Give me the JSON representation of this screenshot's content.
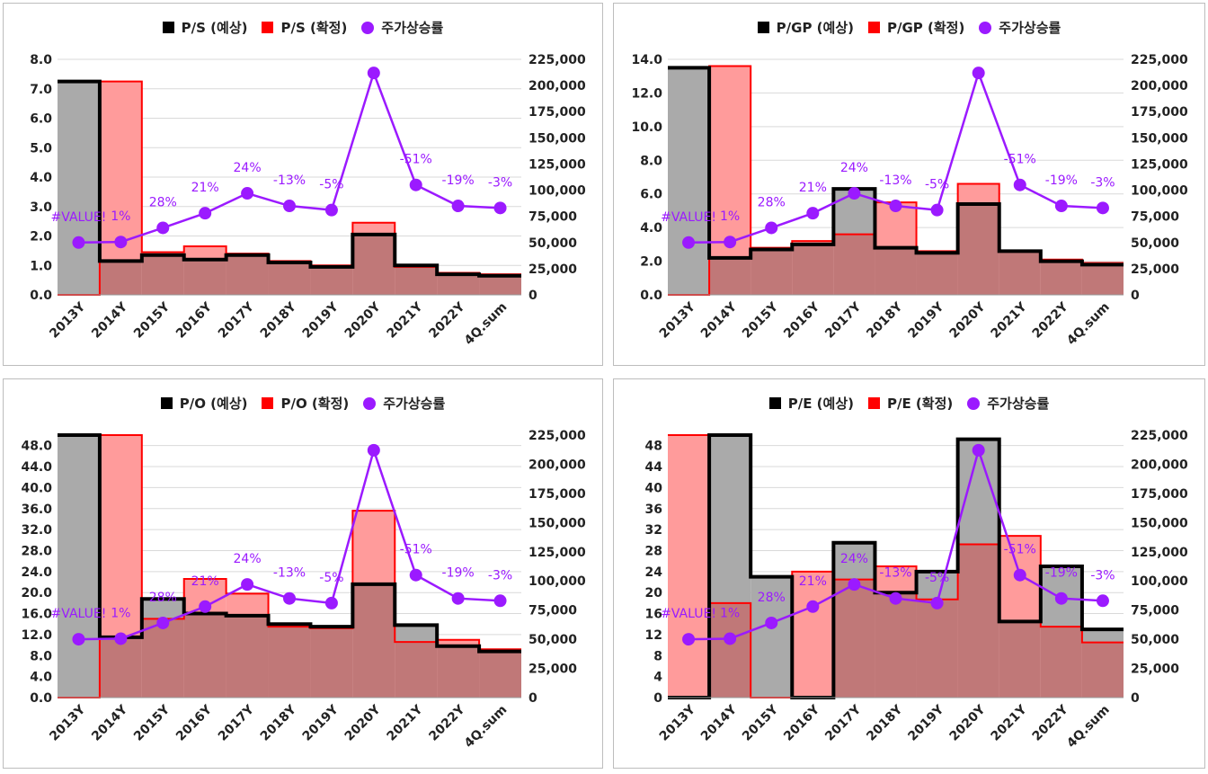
{
  "chart_data": [
    {
      "type": "bar",
      "categories": [
        "2013Y",
        "2014Y",
        "2015Y",
        "2016Y",
        "2017Y",
        "2018Y",
        "2019Y",
        "2020Y",
        "2021Y",
        "2022Y",
        "4Q.sum"
      ],
      "legend": [
        "P/S (예상)",
        "P/S (확정)",
        "주가상승률"
      ],
      "series": [
        {
          "name": "P/S (예상)",
          "axis": "left",
          "values": [
            7.25,
            1.15,
            1.35,
            1.2,
            1.35,
            1.1,
            0.95,
            2.05,
            1.0,
            0.7,
            0.65
          ]
        },
        {
          "name": "P/S (확정)",
          "axis": "left",
          "values": [
            null,
            7.25,
            1.45,
            1.65,
            1.4,
            1.15,
            1.0,
            2.45,
            0.95,
            0.75,
            0.7
          ]
        },
        {
          "name": "주가상승률",
          "axis": "right",
          "values": [
            50000,
            50500,
            64000,
            78000,
            97000,
            85000,
            81000,
            212000,
            105000,
            85000,
            83000
          ],
          "labels": [
            "#VALUE!",
            "1%",
            "28%",
            "21%",
            "24%",
            "-13%",
            "-5%",
            "",
            "-51%",
            "-19%",
            "-3%"
          ]
        }
      ],
      "ylim": [
        0,
        8
      ],
      "yticks": [
        "0.0",
        "1.0",
        "2.0",
        "3.0",
        "4.0",
        "5.0",
        "6.0",
        "7.0",
        "8.0"
      ],
      "y2lim": [
        0,
        225000
      ],
      "y2ticks": [
        "0",
        "25,000",
        "50,000",
        "75,000",
        "100,000",
        "125,000",
        "150,000",
        "175,000",
        "200,000",
        "225,000"
      ],
      "grid": true,
      "legend_position": "top"
    },
    {
      "type": "bar",
      "categories": [
        "2013Y",
        "2014Y",
        "2015Y",
        "2016Y",
        "2017Y",
        "2018Y",
        "2019Y",
        "2020Y",
        "2021Y",
        "2022Y",
        "4Q.sum"
      ],
      "legend": [
        "P/GP (예상)",
        "P/GP (확정)",
        "주가상승률"
      ],
      "series": [
        {
          "name": "P/GP (예상)",
          "axis": "left",
          "values": [
            13.5,
            2.2,
            2.7,
            3.0,
            6.3,
            2.8,
            2.5,
            5.4,
            2.6,
            2.0,
            1.8
          ]
        },
        {
          "name": "P/GP (확정)",
          "axis": "left",
          "values": [
            null,
            13.6,
            2.8,
            3.2,
            3.6,
            5.5,
            2.6,
            6.6,
            2.6,
            2.1,
            1.9
          ]
        },
        {
          "name": "주가상승률",
          "axis": "right",
          "values": [
            50000,
            50500,
            64000,
            78000,
            97000,
            85000,
            81000,
            212000,
            105000,
            85000,
            83000
          ],
          "labels": [
            "#VALUE!",
            "1%",
            "28%",
            "21%",
            "24%",
            "-13%",
            "-5%",
            "",
            "-51%",
            "-19%",
            "-3%"
          ]
        }
      ],
      "ylim": [
        0,
        14
      ],
      "yticks": [
        "0.0",
        "2.0",
        "4.0",
        "6.0",
        "8.0",
        "10.0",
        "12.0",
        "14.0"
      ],
      "y2lim": [
        0,
        225000
      ],
      "y2ticks": [
        "0",
        "25,000",
        "50,000",
        "75,000",
        "100,000",
        "125,000",
        "150,000",
        "175,000",
        "200,000",
        "225,000"
      ],
      "grid": true,
      "legend_position": "top"
    },
    {
      "type": "bar",
      "categories": [
        "2013Y",
        "2014Y",
        "2015Y",
        "2016Y",
        "2017Y",
        "2018Y",
        "2019Y",
        "2020Y",
        "2021Y",
        "2022Y",
        "4Q.sum"
      ],
      "legend": [
        "P/O (예상)",
        "P/O (확정)",
        "주가상승률"
      ],
      "series": [
        {
          "name": "P/O (예상)",
          "axis": "left",
          "values": [
            50,
            11.5,
            18.8,
            16.0,
            15.6,
            14.0,
            13.5,
            21.6,
            13.8,
            9.8,
            8.8
          ]
        },
        {
          "name": "P/O (확정)",
          "axis": "left",
          "values": [
            null,
            50,
            15.0,
            22.6,
            19.8,
            13.5,
            13.2,
            35.6,
            10.6,
            11.0,
            9.2
          ]
        },
        {
          "name": "주가상승률",
          "axis": "right",
          "values": [
            50000,
            50500,
            64000,
            78000,
            97000,
            85000,
            81000,
            212000,
            105000,
            85000,
            83000
          ],
          "labels": [
            "#VALUE!",
            "1%",
            "28%",
            "21%",
            "24%",
            "-13%",
            "-5%",
            "",
            "-51%",
            "-19%",
            "-3%"
          ]
        }
      ],
      "ylim": [
        0,
        50
      ],
      "yticks": [
        "0.0",
        "4.0",
        "8.0",
        "12.0",
        "16.0",
        "20.0",
        "24.0",
        "28.0",
        "32.0",
        "36.0",
        "40.0",
        "44.0",
        "48.0"
      ],
      "y2lim": [
        0,
        225000
      ],
      "y2ticks": [
        "0",
        "25,000",
        "50,000",
        "75,000",
        "100,000",
        "125,000",
        "150,000",
        "175,000",
        "200,000",
        "225,000"
      ],
      "grid": true,
      "legend_position": "top"
    },
    {
      "type": "bar",
      "categories": [
        "2013Y",
        "2014Y",
        "2015Y",
        "2016Y",
        "2017Y",
        "2018Y",
        "2019Y",
        "2020Y",
        "2021Y",
        "2022Y",
        "4Q.sum"
      ],
      "legend": [
        "P/E (예상)",
        "P/E (확정)",
        "주가상승률"
      ],
      "series": [
        {
          "name": "P/E (예상)",
          "axis": "left",
          "values": [
            null,
            50,
            23,
            null,
            29.5,
            20,
            24,
            49.2,
            14.5,
            25,
            13
          ]
        },
        {
          "name": "P/E (확정)",
          "axis": "left",
          "values": [
            50,
            18,
            null,
            24,
            22.5,
            25,
            18.7,
            29.2,
            30.8,
            13.5,
            10.5
          ]
        },
        {
          "name": "주가상승률",
          "axis": "right",
          "values": [
            50000,
            50500,
            64000,
            78000,
            97000,
            85000,
            81000,
            212000,
            105000,
            85000,
            83000
          ],
          "labels": [
            "#VALUE!",
            "1%",
            "28%",
            "21%",
            "24%",
            "-13%",
            "-5%",
            "",
            "-51%",
            "-19%",
            "-3%"
          ]
        }
      ],
      "ylim": [
        0,
        50
      ],
      "yticks": [
        "0",
        "4",
        "8",
        "12",
        "16",
        "20",
        "24",
        "28",
        "32",
        "36",
        "40",
        "44",
        "48"
      ],
      "y2lim": [
        0,
        225000
      ],
      "y2ticks": [
        "0",
        "25,000",
        "50,000",
        "75,000",
        "100,000",
        "125,000",
        "150,000",
        "175,000",
        "200,000",
        "225,000"
      ],
      "grid": true,
      "legend_position": "top"
    }
  ],
  "colors": {
    "expected_fill": "#aaaaaa",
    "expected_line": "#000000",
    "actual_fill": "#ff9b9b",
    "actual_line": "#ff0000",
    "overlap_fill": "#c07878",
    "price_line": "#9b1aff",
    "label_text": "#9b1aff",
    "grid": "#d9d9d9"
  }
}
